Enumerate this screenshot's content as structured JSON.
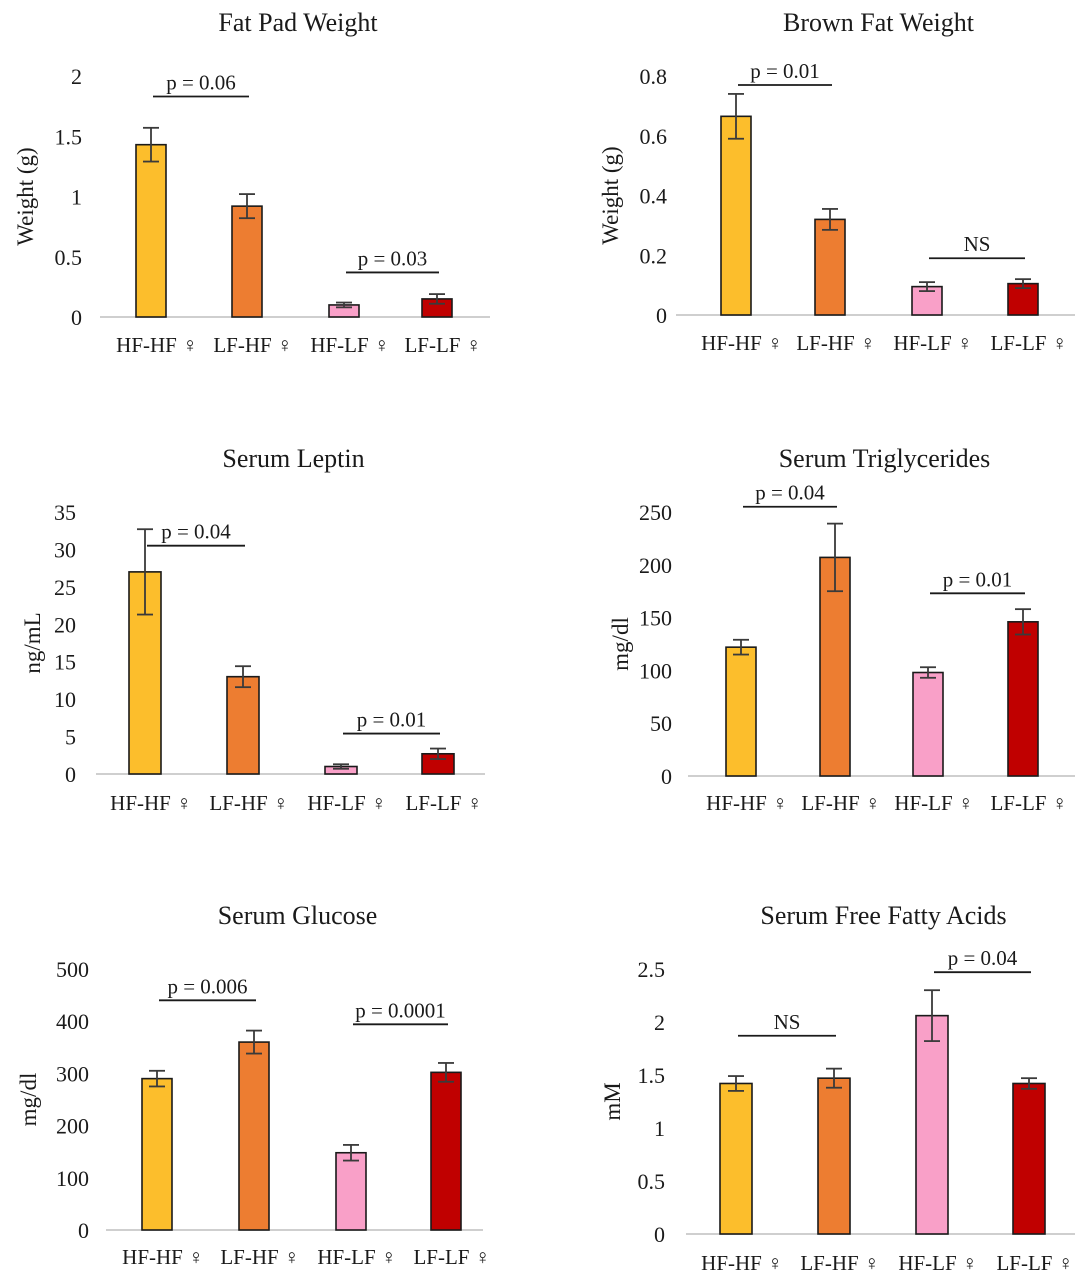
{
  "categories": [
    "HF-HF ♀",
    "LF-HF ♀",
    "HF-LF ♀",
    "LF-LF ♀"
  ],
  "colors": [
    "#FCBE2C",
    "#ED7D31",
    "#F9A0C8",
    "#C00000"
  ],
  "chart_data": [
    {
      "type": "bar",
      "title": "Fat Pad Weight",
      "ylabel": "Weight (g)",
      "categories": [
        "HF-HF ♀",
        "LF-HF ♀",
        "HF-LF ♀",
        "LF-LF ♀"
      ],
      "values": [
        1.43,
        0.92,
        0.1,
        0.15
      ],
      "errors": [
        0.14,
        0.1,
        0.02,
        0.04
      ],
      "ylim": [
        0,
        2
      ],
      "yticks": [
        "0",
        "0.5",
        "1",
        "1.5",
        "2"
      ],
      "annotations": [
        {
          "text": "p = 0.06",
          "from": 0,
          "to": 1,
          "y": 1.83
        },
        {
          "text": "p = 0.03",
          "from": 2,
          "to": 3,
          "y": 0.37
        }
      ]
    },
    {
      "type": "bar",
      "title": "Brown Fat Weight",
      "ylabel": "Weight (g)",
      "categories": [
        "HF-HF ♀",
        "LF-HF ♀",
        "HF-LF ♀",
        "LF-LF ♀"
      ],
      "values": [
        0.665,
        0.32,
        0.095,
        0.105
      ],
      "errors": [
        0.075,
        0.035,
        0.015,
        0.015
      ],
      "ylim": [
        0,
        0.8
      ],
      "yticks": [
        "0",
        "0.2",
        "0.4",
        "0.6",
        "0.8"
      ],
      "annotations": [
        {
          "text": "p = 0.01",
          "from": 0,
          "to": 1,
          "y": 0.77
        },
        {
          "text": "NS",
          "from": 2,
          "to": 3,
          "y": 0.19
        }
      ]
    },
    {
      "type": "bar",
      "title": "Serum Leptin",
      "ylabel": "ng/mL",
      "categories": [
        "HF-HF ♀",
        "LF-HF ♀",
        "HF-LF ♀",
        "LF-LF ♀"
      ],
      "values": [
        27,
        13,
        1,
        2.7
      ],
      "errors": [
        5.7,
        1.4,
        0.3,
        0.7
      ],
      "ylim": [
        0,
        35
      ],
      "yticks": [
        "0",
        "5",
        "10",
        "15",
        "20",
        "25",
        "30",
        "35"
      ],
      "annotations": [
        {
          "text": "p = 0.04",
          "from": 0,
          "to": 1,
          "y": 30.5
        },
        {
          "text": "p = 0.01",
          "from": 2,
          "to": 3,
          "y": 5.4
        }
      ]
    },
    {
      "type": "bar",
      "title": "Serum Triglycerides",
      "ylabel": "mg/dl",
      "categories": [
        "HF-HF ♀",
        "LF-HF ♀",
        "HF-LF ♀",
        "LF-LF ♀"
      ],
      "values": [
        122,
        207,
        98,
        146
      ],
      "errors": [
        7,
        32,
        5,
        12
      ],
      "ylim": [
        0,
        250
      ],
      "yticks": [
        "0",
        "50",
        "100",
        "150",
        "200",
        "250"
      ],
      "annotations": [
        {
          "text": "p = 0.04",
          "from": 0,
          "to": 1,
          "y": 255
        },
        {
          "text": "p = 0.01",
          "from": 2,
          "to": 3,
          "y": 173
        }
      ]
    },
    {
      "type": "bar",
      "title": "Serum Glucose",
      "ylabel": "mg/dl",
      "categories": [
        "HF-HF ♀",
        "LF-HF ♀",
        "HF-LF ♀",
        "LF-LF ♀"
      ],
      "values": [
        290,
        360,
        148,
        302
      ],
      "errors": [
        15,
        22,
        15,
        18
      ],
      "ylim": [
        0,
        500
      ],
      "yticks": [
        "0",
        "100",
        "200",
        "300",
        "400",
        "500"
      ],
      "annotations": [
        {
          "text": "p = 0.006",
          "from": 0,
          "to": 1,
          "y": 440
        },
        {
          "text": "p = 0.0001",
          "from": 2,
          "to": 3,
          "y": 394
        }
      ]
    },
    {
      "type": "bar",
      "title": "Serum Free Fatty Acids",
      "ylabel": "mM",
      "categories": [
        "HF-HF ♀",
        "LF-HF ♀",
        "HF-LF ♀",
        "LF-LF ♀"
      ],
      "values": [
        1.42,
        1.47,
        2.06,
        1.42
      ],
      "errors": [
        0.07,
        0.09,
        0.24,
        0.05
      ],
      "ylim": [
        0,
        2.5
      ],
      "yticks": [
        "0",
        "0.5",
        "1",
        "1.5",
        "2",
        "2.5"
      ],
      "annotations": [
        {
          "text": "NS",
          "from": 0,
          "to": 1,
          "y": 1.87
        },
        {
          "text": "p = 0.04",
          "from": 2,
          "to": 3,
          "y": 2.47
        }
      ]
    }
  ]
}
